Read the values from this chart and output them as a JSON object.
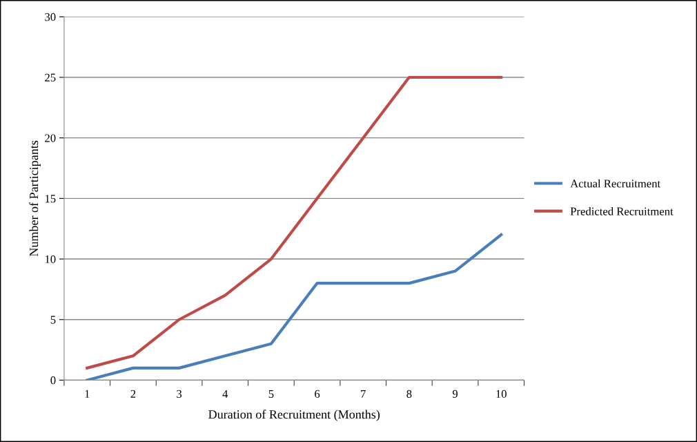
{
  "chart_data": {
    "type": "line",
    "xlabel": "Duration of Recruitment (Months)",
    "ylabel": "Number of Participants",
    "categories": [
      "1",
      "2",
      "3",
      "4",
      "5",
      "6",
      "7",
      "8",
      "9",
      "10"
    ],
    "series": [
      {
        "name": "Actual Recruitment",
        "color": "#4a7ebb",
        "values": [
          0,
          1,
          1,
          2,
          3,
          8,
          8,
          8,
          9,
          12
        ]
      },
      {
        "name": "Predicted Recruitment",
        "color": "#be4b48",
        "values": [
          1,
          2,
          5,
          7,
          10,
          15,
          20,
          25,
          25,
          25
        ]
      }
    ],
    "ylim": [
      0,
      30
    ],
    "yticks": [
      0,
      5,
      10,
      15,
      20,
      25,
      30
    ],
    "grid": "y",
    "legend": "right",
    "marker": "none",
    "line_style": "solid"
  }
}
